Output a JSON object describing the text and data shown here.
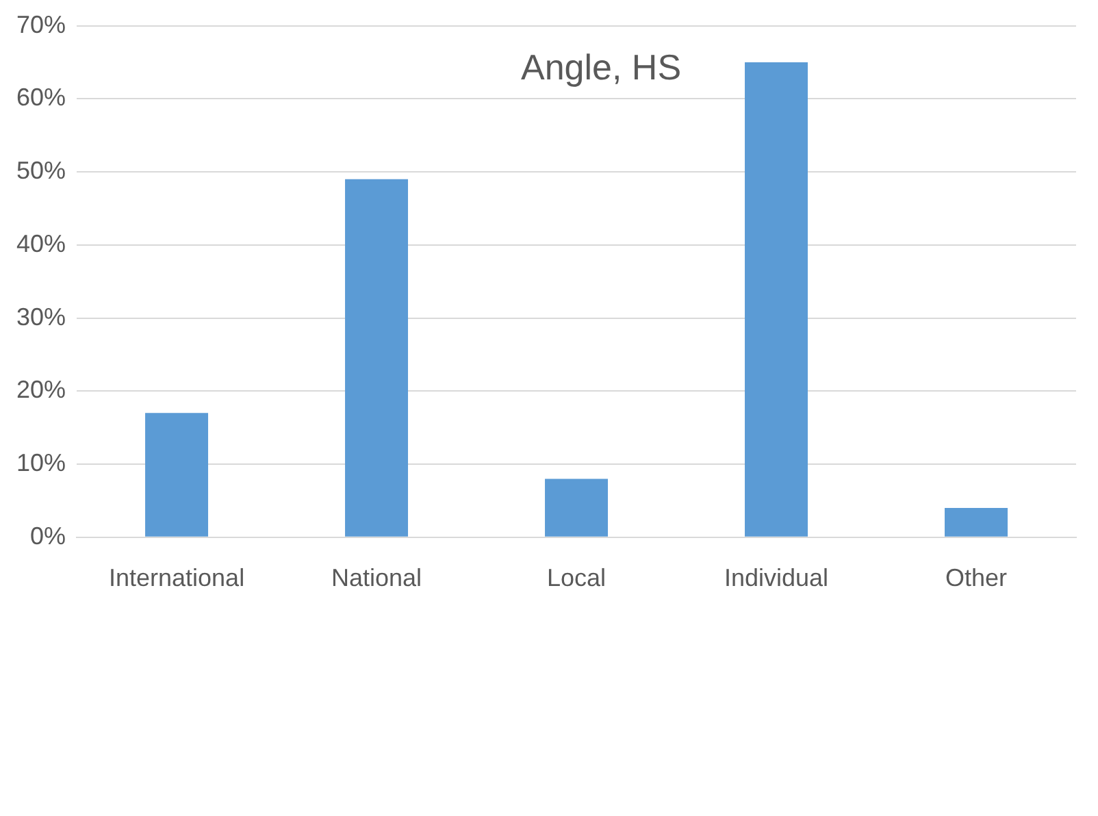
{
  "chart_data": {
    "type": "bar",
    "title": "Angle, HS",
    "categories": [
      "International",
      "National",
      "Local",
      "Individual",
      "Other"
    ],
    "values": [
      17,
      49,
      8,
      65,
      4
    ],
    "color": "#5b9bd5",
    "ylim": [
      0,
      70
    ],
    "yticks": [
      {
        "value": 0,
        "label": "0%"
      },
      {
        "value": 10,
        "label": "10%"
      },
      {
        "value": 20,
        "label": "20%"
      },
      {
        "value": 30,
        "label": "30%"
      },
      {
        "value": 40,
        "label": "40%"
      },
      {
        "value": 50,
        "label": "50%"
      },
      {
        "value": 60,
        "label": "60%"
      },
      {
        "value": 70,
        "label": "70%"
      }
    ],
    "grid": "y",
    "legend": false
  }
}
